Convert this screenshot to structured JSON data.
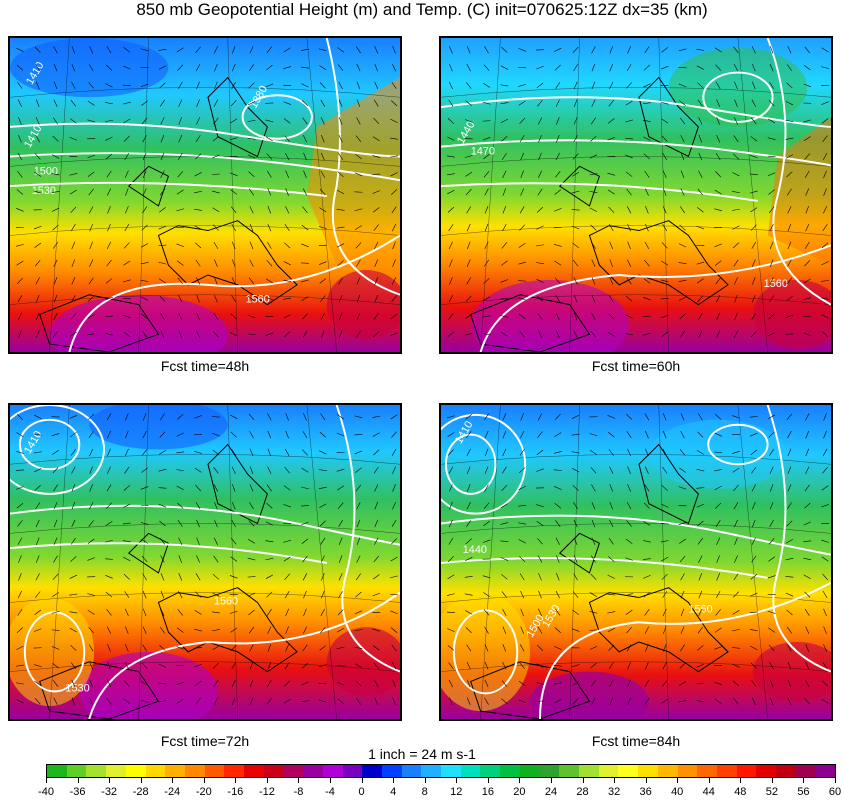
{
  "title": "850 mb Geopotential Height (m) and Temp. (C) init=070625:12Z dx=35 (km)",
  "panels": [
    {
      "caption": "Fcst time=48h",
      "contour_labels": [
        "1410",
        "1410",
        "1500",
        "1530",
        "1380",
        "1560"
      ]
    },
    {
      "caption": "Fcst time=60h",
      "contour_labels": [
        "1440",
        "1470",
        "1560"
      ]
    },
    {
      "caption": "Fcst time=72h",
      "contour_labels": [
        "1410",
        "1530",
        "1560"
      ]
    },
    {
      "caption": "Fcst time=84h",
      "contour_labels": [
        "1410",
        "1440",
        "1500",
        "1530",
        "1560"
      ]
    }
  ],
  "wind_scale_note": "1 inch = 24 m s-1",
  "colorbar": {
    "ticks": [
      "-40",
      "-36",
      "-32",
      "-28",
      "-24",
      "-20",
      "-16",
      "-12",
      "-8",
      "-4",
      "0",
      "4",
      "8",
      "12",
      "16",
      "20",
      "24",
      "28",
      "32",
      "36",
      "40",
      "44",
      "48",
      "52",
      "56",
      "60"
    ],
    "colors": [
      "#1fb51f",
      "#5fcf28",
      "#a3e12e",
      "#e0f030",
      "#ffff00",
      "#ffd800",
      "#ffb000",
      "#ff8800",
      "#ff5a00",
      "#ff2800",
      "#e80000",
      "#c80018",
      "#b00060",
      "#9a00a0",
      "#b000d8",
      "#7a00c0",
      "#0000c8",
      "#0040ff",
      "#1a80ff",
      "#20b0ff",
      "#20e0ff",
      "#00e0c0",
      "#00d080",
      "#00c040",
      "#10b020",
      "#30a030",
      "#60c030",
      "#a0e030",
      "#e0f030",
      "#ffff20",
      "#ffe000",
      "#ffb800",
      "#ff9000",
      "#ff6800",
      "#ff4000",
      "#ff1800",
      "#e00000",
      "#c00010",
      "#a00050",
      "#8c0090"
    ]
  },
  "colors": {
    "contour": "#ffffff",
    "coast": "#000000",
    "grid": "#000000"
  }
}
